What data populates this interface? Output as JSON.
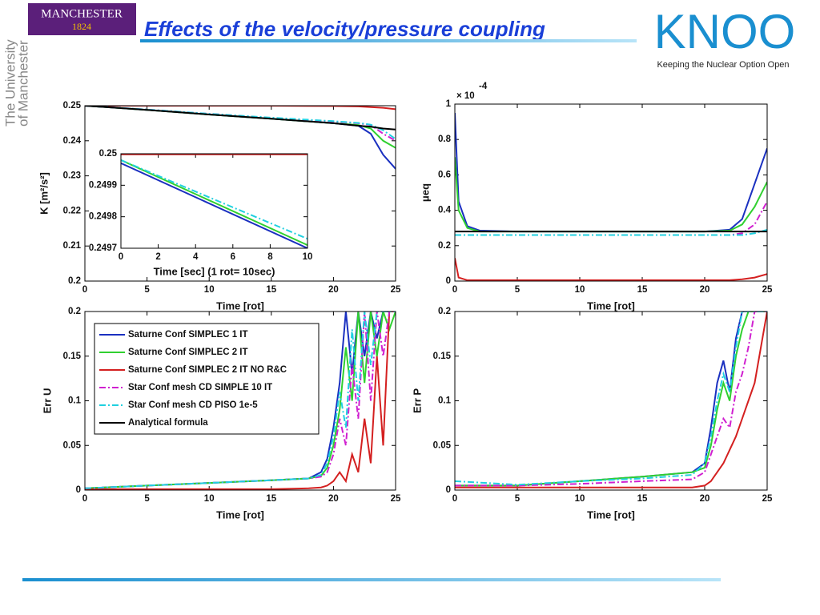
{
  "header": {
    "title": "Effects of the velocity/pressure coupling",
    "logo_left": "MANCHESTER",
    "logo_left_year": "1824",
    "side_text": [
      "The University",
      "of Manchester"
    ],
    "logo_right": "KNOO",
    "logo_right_tagline": "Keeping the Nuclear Option Open"
  },
  "chart_data": [
    {
      "type": "line",
      "xlabel": "Time [rot]",
      "ylabel": "K [m²/s²]",
      "xlim": [
        0,
        25
      ],
      "ylim": [
        0.2,
        0.25
      ],
      "xticks": [
        0,
        5,
        10,
        15,
        20,
        25
      ],
      "yticks": [
        0.2,
        0.21,
        0.22,
        0.23,
        0.24,
        0.25
      ],
      "grid": false,
      "x": [
        0,
        5,
        10,
        15,
        20,
        22,
        23,
        24,
        25
      ],
      "series": [
        {
          "color": "#1a30c0",
          "linestyle": "-",
          "values": [
            0.25,
            0.2488,
            0.2475,
            0.2463,
            0.245,
            0.2443,
            0.242,
            0.236,
            0.232
          ]
        },
        {
          "color": "#30d030",
          "linestyle": "-",
          "values": [
            0.25,
            0.2488,
            0.2475,
            0.2463,
            0.245,
            0.2445,
            0.2435,
            0.24,
            0.238
          ]
        },
        {
          "color": "#d42020",
          "linestyle": "-",
          "values": [
            0.25,
            0.25,
            0.25,
            0.25,
            0.2499,
            0.2498,
            0.2496,
            0.2494,
            0.249
          ]
        },
        {
          "color": "#d020d0",
          "linestyle": "-.",
          "values": [
            0.25,
            0.2489,
            0.2477,
            0.2465,
            0.2455,
            0.245,
            0.2445,
            0.242,
            0.24
          ]
        },
        {
          "color": "#20d0e0",
          "linestyle": "-.",
          "values": [
            0.25,
            0.2489,
            0.2477,
            0.2466,
            0.2456,
            0.2451,
            0.2446,
            0.243,
            0.2405
          ]
        },
        {
          "color": "#000000",
          "linestyle": "-",
          "values": [
            0.25,
            0.2488,
            0.2475,
            0.2463,
            0.245,
            0.2443,
            0.244,
            0.2435,
            0.2432
          ]
        }
      ]
    },
    {
      "type": "line",
      "xlabel": "Time [sec] (1 rot= 10sec)",
      "xlim": [
        0,
        10
      ],
      "ylim": [
        0.2497,
        0.25
      ],
      "xticks": [
        0,
        2,
        4,
        6,
        8,
        10
      ],
      "yticks": [
        0.2497,
        0.2498,
        0.2499,
        0.25
      ],
      "grid": false,
      "x": [
        0,
        10
      ],
      "series": [
        {
          "color": "#1a30c0",
          "linestyle": "-",
          "values": [
            0.24997,
            0.2497
          ]
        },
        {
          "color": "#30d030",
          "linestyle": "-",
          "values": [
            0.24998,
            0.24971
          ]
        },
        {
          "color": "#d42020",
          "linestyle": "-",
          "values": [
            0.249998,
            0.249998
          ]
        },
        {
          "color": "#20d0e0",
          "linestyle": "-.",
          "values": [
            0.24998,
            0.24973
          ]
        }
      ]
    },
    {
      "type": "line",
      "xlabel": "Time [rot]",
      "ylabel": "μeq",
      "annotation": "× 10",
      "annotation_exponent": "-4",
      "xlim": [
        0,
        25
      ],
      "ylim": [
        0,
        1
      ],
      "xticks": [
        0,
        5,
        10,
        15,
        20,
        25
      ],
      "yticks": [
        0,
        0.2,
        0.4,
        0.6,
        0.8,
        1
      ],
      "grid": false,
      "x": [
        0,
        0.3,
        1,
        2,
        5,
        10,
        15,
        20,
        22,
        23,
        24,
        25
      ],
      "series": [
        {
          "color": "#1a30c0",
          "linestyle": "-",
          "values": [
            0.95,
            0.45,
            0.31,
            0.285,
            0.28,
            0.28,
            0.28,
            0.28,
            0.29,
            0.35,
            0.55,
            0.75
          ]
        },
        {
          "color": "#30d030",
          "linestyle": "-",
          "values": [
            0.7,
            0.4,
            0.3,
            0.28,
            0.28,
            0.28,
            0.28,
            0.28,
            0.285,
            0.32,
            0.42,
            0.56
          ]
        },
        {
          "color": "#d42020",
          "linestyle": "-",
          "values": [
            0.13,
            0.02,
            0.005,
            0.005,
            0.005,
            0.005,
            0.005,
            0.005,
            0.005,
            0.01,
            0.02,
            0.04
          ]
        },
        {
          "color": "#d020d0",
          "linestyle": "-.",
          "values": [
            0.26,
            0.26,
            0.26,
            0.26,
            0.26,
            0.26,
            0.26,
            0.26,
            0.26,
            0.27,
            0.32,
            0.45
          ]
        },
        {
          "color": "#20d0e0",
          "linestyle": "-.",
          "values": [
            0.26,
            0.26,
            0.26,
            0.26,
            0.26,
            0.26,
            0.26,
            0.26,
            0.26,
            0.26,
            0.27,
            0.29
          ]
        },
        {
          "color": "#000000",
          "linestyle": "-",
          "values": [
            0.28,
            0.28,
            0.28,
            0.28,
            0.28,
            0.28,
            0.28,
            0.28,
            0.28,
            0.28,
            0.28,
            0.28
          ]
        }
      ]
    },
    {
      "type": "line",
      "xlabel": "Time [rot]",
      "ylabel": "Err U",
      "legend": "upper left",
      "xlim": [
        0,
        25
      ],
      "ylim": [
        0,
        0.2
      ],
      "xticks": [
        0,
        5,
        10,
        15,
        20,
        25
      ],
      "yticks": [
        0,
        0.05,
        0.1,
        0.15,
        0.2
      ],
      "grid": false,
      "x": [
        0,
        5,
        10,
        15,
        18,
        19,
        19.5,
        20,
        20.5,
        21,
        21.5,
        22,
        22.5,
        23,
        23.5,
        24,
        24.5,
        25
      ],
      "series": [
        {
          "name": "Saturne Conf SIMPLEC 1 IT",
          "color": "#1a30c0",
          "linestyle": "-",
          "values": [
            0.002,
            0.005,
            0.008,
            0.011,
            0.013,
            0.02,
            0.035,
            0.07,
            0.12,
            0.2,
            0.13,
            0.2,
            0.15,
            0.2,
            0.17,
            0.2,
            0.2,
            0.2
          ]
        },
        {
          "name": "Saturne Conf SIMPLEC 2 IT",
          "color": "#30d030",
          "linestyle": "-",
          "values": [
            0.002,
            0.005,
            0.008,
            0.011,
            0.013,
            0.016,
            0.025,
            0.05,
            0.09,
            0.16,
            0.1,
            0.2,
            0.12,
            0.2,
            0.15,
            0.2,
            0.18,
            0.2
          ]
        },
        {
          "name": "Saturne Conf SIMPLEC 2 IT NO R&C",
          "color": "#d42020",
          "linestyle": "-",
          "values": [
            0.001,
            0.001,
            0.001,
            0.001,
            0.002,
            0.003,
            0.005,
            0.01,
            0.02,
            0.01,
            0.04,
            0.02,
            0.08,
            0.03,
            0.15,
            0.05,
            0.2,
            0.2
          ]
        },
        {
          "name": "Star Conf mesh CD SIMPLE 10 IT",
          "color": "#d020d0",
          "linestyle": "-.",
          "values": [
            0.002,
            0.005,
            0.008,
            0.011,
            0.013,
            0.015,
            0.02,
            0.04,
            0.08,
            0.05,
            0.14,
            0.08,
            0.2,
            0.1,
            0.2,
            0.15,
            0.2,
            0.2
          ]
        },
        {
          "name": "Star Conf mesh CD PISO 1e-5",
          "color": "#20d0e0",
          "linestyle": "-.",
          "values": [
            0.002,
            0.005,
            0.008,
            0.011,
            0.013,
            0.017,
            0.03,
            0.06,
            0.11,
            0.07,
            0.18,
            0.1,
            0.2,
            0.14,
            0.2,
            0.2,
            0.2,
            0.2
          ]
        },
        {
          "name": "Analytical formula",
          "color": "#000000",
          "linestyle": "-",
          "values": [
            null,
            null,
            null,
            null,
            null,
            null,
            null,
            null,
            null,
            null,
            null,
            null,
            null,
            null,
            null,
            null,
            null,
            null
          ]
        }
      ]
    },
    {
      "type": "line",
      "xlabel": "Time [rot]",
      "ylabel": "Err P",
      "xlim": [
        0,
        25
      ],
      "ylim": [
        0,
        0.2
      ],
      "xticks": [
        0,
        5,
        10,
        15,
        20,
        25
      ],
      "yticks": [
        0,
        0.05,
        0.1,
        0.15,
        0.2
      ],
      "grid": false,
      "x": [
        0,
        5,
        10,
        15,
        19,
        20,
        20.5,
        21,
        21.5,
        22,
        22.5,
        23,
        23.5,
        24,
        24.5,
        25
      ],
      "series": [
        {
          "color": "#1a30c0",
          "linestyle": "-",
          "values": [
            0.005,
            0.005,
            0.01,
            0.015,
            0.02,
            0.03,
            0.07,
            0.12,
            0.145,
            0.11,
            0.17,
            0.2,
            0.2,
            0.2,
            0.2,
            0.2
          ]
        },
        {
          "color": "#30d030",
          "linestyle": "-",
          "values": [
            0.005,
            0.005,
            0.01,
            0.015,
            0.02,
            0.025,
            0.05,
            0.09,
            0.12,
            0.1,
            0.15,
            0.18,
            0.2,
            0.2,
            0.2,
            0.2
          ]
        },
        {
          "color": "#d42020",
          "linestyle": "-",
          "values": [
            0.003,
            0.003,
            0.003,
            0.003,
            0.003,
            0.005,
            0.01,
            0.02,
            0.03,
            0.045,
            0.06,
            0.08,
            0.1,
            0.12,
            0.16,
            0.2
          ]
        },
        {
          "color": "#d020d0",
          "linestyle": "-.",
          "values": [
            0.005,
            0.005,
            0.007,
            0.01,
            0.012,
            0.02,
            0.04,
            0.06,
            0.08,
            0.07,
            0.11,
            0.13,
            0.16,
            0.2,
            0.2,
            0.2
          ]
        },
        {
          "color": "#20d0e0",
          "linestyle": "-.",
          "values": [
            0.01,
            0.006,
            0.01,
            0.013,
            0.017,
            0.03,
            0.06,
            0.1,
            0.13,
            0.11,
            0.16,
            0.2,
            0.2,
            0.2,
            0.2,
            0.2
          ]
        }
      ]
    }
  ]
}
